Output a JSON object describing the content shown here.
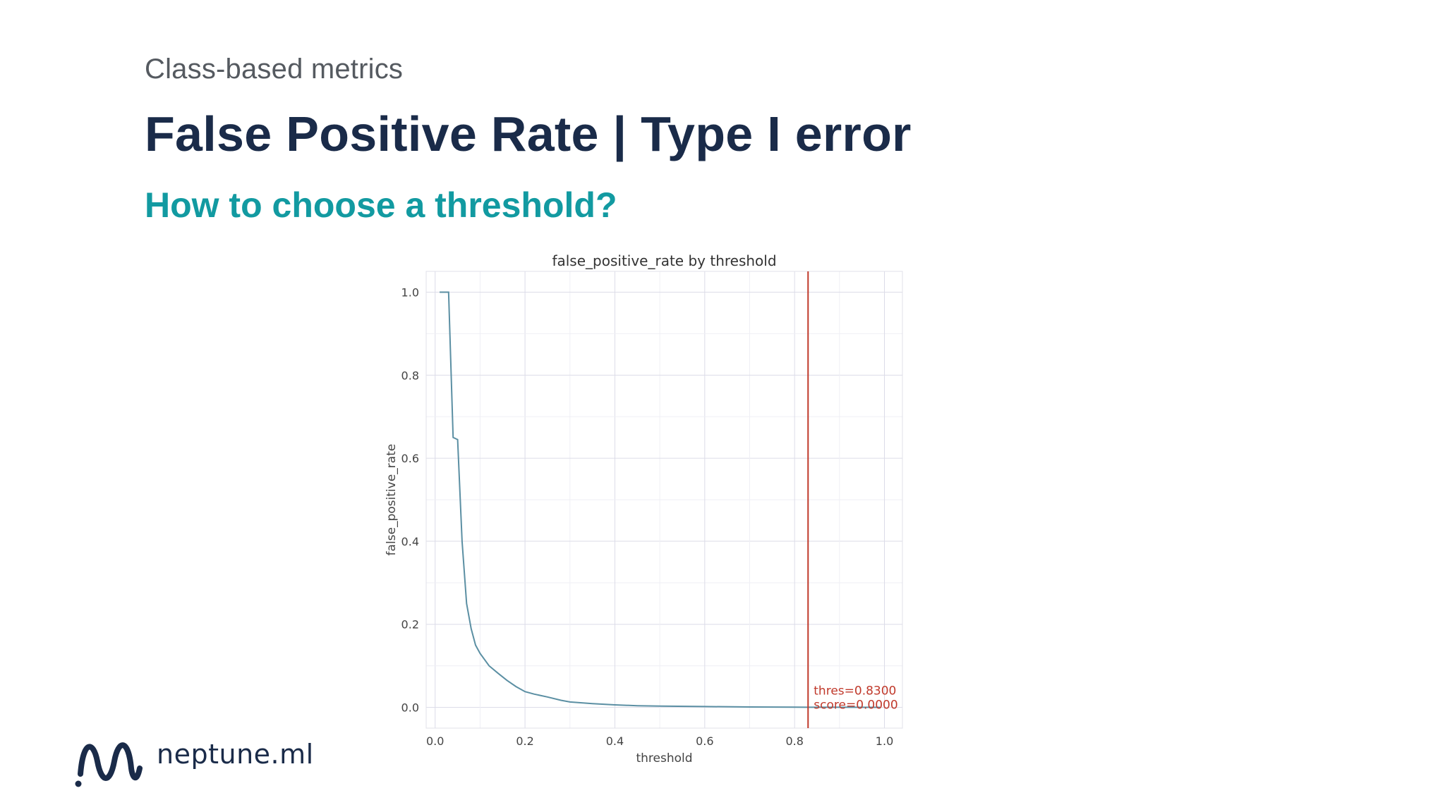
{
  "header": {
    "eyebrow": "Class-based metrics",
    "title": "False Positive Rate | Type I error",
    "subtitle": "How to choose a threshold?"
  },
  "brand": {
    "logo_text": "neptune.ml",
    "logo_icon": "wave-icon",
    "colors": {
      "navy": "#1a2b49",
      "teal": "#129aa1",
      "gray": "#555a60"
    }
  },
  "chart_data": {
    "type": "line",
    "title": "false_positive_rate by threshold",
    "xlabel": "threshold",
    "ylabel": "false_positive_rate",
    "xlim": [
      -0.02,
      1.04
    ],
    "ylim": [
      -0.05,
      1.05
    ],
    "x_ticks": [
      "0.0",
      "0.2",
      "0.4",
      "0.6",
      "0.8",
      "1.0"
    ],
    "y_ticks": [
      "0.0",
      "0.2",
      "0.4",
      "0.6",
      "0.8",
      "1.0"
    ],
    "grid": true,
    "line_color": "#5b8fa3",
    "marker_color": "#c0392b",
    "series": [
      {
        "x": [
          0.01,
          0.03,
          0.04,
          0.05,
          0.06,
          0.07,
          0.08,
          0.09,
          0.1,
          0.12,
          0.14,
          0.16,
          0.18,
          0.2,
          0.22,
          0.25,
          0.28,
          0.3,
          0.35,
          0.4,
          0.45,
          0.5,
          0.6,
          0.7,
          0.8,
          0.9,
          0.99
        ],
        "y": [
          1.0,
          1.0,
          0.65,
          0.645,
          0.4,
          0.25,
          0.19,
          0.15,
          0.13,
          0.1,
          0.082,
          0.065,
          0.05,
          0.038,
          0.032,
          0.025,
          0.017,
          0.013,
          0.009,
          0.006,
          0.004,
          0.003,
          0.002,
          0.001,
          0.0005,
          0.0002,
          0.0
        ]
      }
    ],
    "threshold_marker": {
      "x": 0.83,
      "label_threshold": "thres=0.8300",
      "label_score": "score=0.0000"
    }
  }
}
